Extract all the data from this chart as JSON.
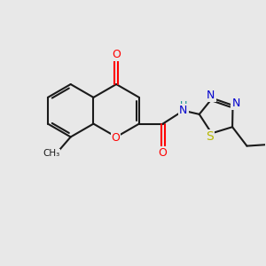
{
  "bg_color": "#e8e8e8",
  "bond_color": "#1a1a1a",
  "bond_width": 1.5,
  "atom_colors": {
    "O": "#ff0000",
    "N": "#0000cd",
    "S": "#b8b800",
    "H": "#008b8b",
    "C": "#1a1a1a"
  },
  "font_size": 9
}
